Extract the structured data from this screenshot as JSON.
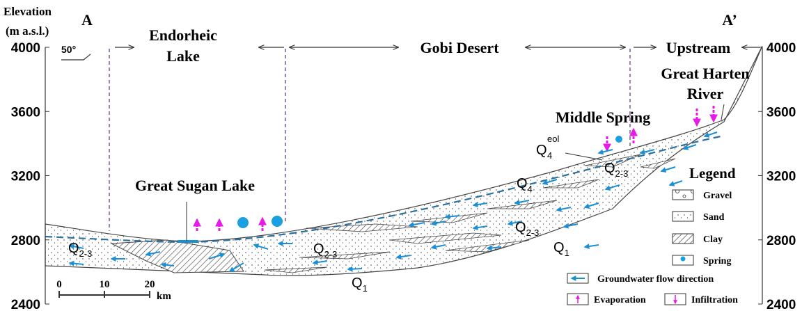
{
  "axis": {
    "title": "Elevation",
    "unit": "(m a.s.l.)",
    "ticks": [
      4000,
      3600,
      3200,
      2800,
      2400
    ]
  },
  "section": {
    "start": "A",
    "end": "A’"
  },
  "orientation": "50°",
  "regions": {
    "endorheic_lake": [
      "Endorheic",
      "Lake"
    ],
    "gobi_desert": "Gobi Desert",
    "upstream": "Upstream"
  },
  "features": {
    "great_harten_river": [
      "Great Harten",
      "River"
    ],
    "middle_spring": "Middle Spring",
    "great_sugan_lake": "Great Sugan Lake"
  },
  "units": [
    {
      "base": "Q",
      "sub": "4",
      "sup": "eol"
    },
    {
      "base": "Q",
      "sub": "4"
    },
    {
      "base": "Q",
      "sub": "2-3"
    },
    {
      "base": "Q",
      "sub": "2-3"
    },
    {
      "base": "Q",
      "sub": "1"
    },
    {
      "base": "Q",
      "sub": "2-3"
    },
    {
      "base": "Q",
      "sub": "2-3"
    },
    {
      "base": "Q",
      "sub": "1"
    }
  ],
  "scale_bar": {
    "ticks": [
      0,
      10,
      20
    ],
    "unit": "km"
  },
  "legend": {
    "title": "Legend",
    "items": [
      "Gravel",
      "Sand",
      "Clay",
      "Spring"
    ],
    "flow": "Groundwater flow direction",
    "evaporation": "Evaporation",
    "infiltration": "Infiltration"
  }
}
